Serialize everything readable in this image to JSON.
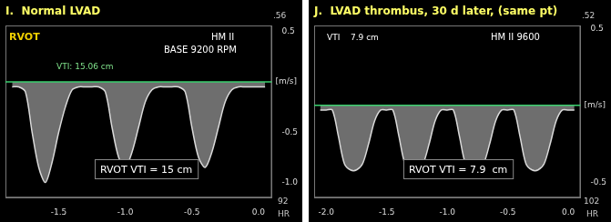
{
  "chart_data": [
    {
      "type": "line",
      "title": "I.  Normal LVAD",
      "annotations": [
        "RVOT",
        "HM II",
        "BASE 9200 RPM",
        "VTI: 15.06 cm",
        "RVOT VTI = 15 cm",
        ".56",
        "92",
        "HR"
      ],
      "y_label": "[m/s]",
      "x": [
        -1.85,
        -1.8,
        -1.75,
        -1.7,
        -1.65,
        -1.6,
        -1.55,
        -1.5,
        -1.45,
        -1.4,
        -1.35,
        -1.3,
        -1.25,
        -1.2,
        -1.15,
        -1.1,
        -1.05,
        -1.0,
        -0.95,
        -0.9,
        -0.85,
        -0.8,
        -0.75,
        -0.7,
        -0.65,
        -0.6,
        -0.55,
        -0.5,
        -0.45,
        -0.4,
        -0.35,
        -0.3,
        -0.25,
        -0.2,
        -0.15,
        -0.1,
        -0.05,
        0.0,
        0.05
      ],
      "values": [
        -0.05,
        -0.05,
        -0.1,
        -0.5,
        -0.85,
        -1.0,
        -0.8,
        -0.5,
        -0.25,
        -0.08,
        -0.05,
        -0.05,
        -0.05,
        -0.05,
        -0.1,
        -0.45,
        -0.75,
        -0.85,
        -0.7,
        -0.45,
        -0.2,
        -0.08,
        -0.05,
        -0.05,
        -0.05,
        -0.05,
        -0.1,
        -0.45,
        -0.75,
        -0.85,
        -0.7,
        -0.45,
        -0.2,
        -0.08,
        -0.05,
        -0.05,
        -0.05,
        -0.05,
        -0.05
      ],
      "color": "#d9d9d9",
      "xlim": [
        -1.9,
        0.1
      ],
      "xticks": [
        -1.5,
        {
          "value": -1,
          "label": "-1.0"
        },
        -0.5,
        {
          "value": 0,
          "label": "0.0"
        }
      ],
      "ylim": [
        -1.15,
        0.56
      ],
      "yticks": [
        0.5,
        -0.5,
        {
          "value": -1,
          "label": "-1.0"
        }
      ],
      "grid": false
    },
    {
      "type": "line",
      "title": "J.  LVAD thrombus, 30 d later, (same pt)",
      "annotations": [
        "HM II 9600",
        "VTI",
        "7.9 cm",
        "RVOT VTI = 7.9  cm",
        ".52",
        "102",
        "HR"
      ],
      "y_label": "[m/s]",
      "x": [
        -2.05,
        -2.0,
        -1.95,
        -1.9,
        -1.85,
        -1.8,
        -1.75,
        -1.7,
        -1.65,
        -1.6,
        -1.55,
        -1.5,
        -1.45,
        -1.4,
        -1.35,
        -1.3,
        -1.25,
        -1.2,
        -1.15,
        -1.1,
        -1.05,
        -1.0,
        -0.95,
        -0.9,
        -0.85,
        -0.8,
        -0.75,
        -0.7,
        -0.65,
        -0.6,
        -0.55,
        -0.5,
        -0.45,
        -0.4,
        -0.35,
        -0.3,
        -0.25,
        -0.2,
        -0.15,
        -0.1,
        -0.05,
        0.0,
        0.05
      ],
      "values": [
        -0.03,
        -0.03,
        -0.03,
        -0.2,
        -0.38,
        -0.42,
        -0.42,
        -0.38,
        -0.25,
        -0.1,
        -0.03,
        -0.03,
        -0.03,
        -0.2,
        -0.38,
        -0.42,
        -0.42,
        -0.38,
        -0.25,
        -0.1,
        -0.03,
        -0.03,
        -0.03,
        -0.2,
        -0.38,
        -0.42,
        -0.42,
        -0.38,
        -0.25,
        -0.1,
        -0.03,
        -0.03,
        -0.03,
        -0.2,
        -0.38,
        -0.42,
        -0.42,
        -0.38,
        -0.25,
        -0.1,
        -0.03,
        -0.03,
        -0.03
      ],
      "color": "#d9d9d9",
      "xlim": [
        -2.1,
        0.1
      ],
      "xticks": [
        {
          "value": -2,
          "label": "-2.0"
        },
        -1.5,
        {
          "value": -1,
          "label": "-1.0"
        },
        -0.5,
        {
          "value": 0,
          "label": "0.0"
        }
      ],
      "ylim": [
        -0.6,
        0.52
      ],
      "yticks": [
        0.5,
        -0.5
      ],
      "grid": false
    }
  ]
}
